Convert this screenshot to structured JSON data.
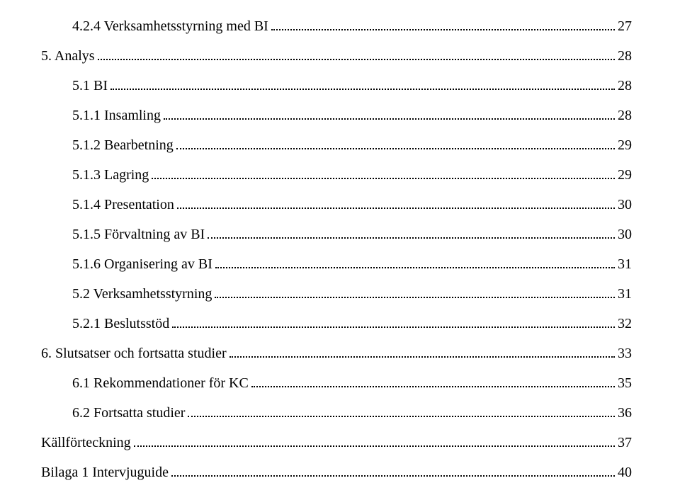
{
  "font_family": "Times New Roman",
  "text_color": "#000000",
  "background_color": "#ffffff",
  "fontsize": 20,
  "dot_leader_color": "#000000",
  "entries": [
    {
      "indent": 0,
      "label": "4.2.4 Verksamhetsstyrning med BI",
      "page": "27"
    },
    {
      "indent": 1,
      "label": "5. Analys",
      "page": "28"
    },
    {
      "indent": 2,
      "label": "5.1 BI",
      "page": "28"
    },
    {
      "indent": 0,
      "label": "5.1.1 Insamling",
      "page": "28"
    },
    {
      "indent": 0,
      "label": "5.1.2 Bearbetning",
      "page": "29"
    },
    {
      "indent": 0,
      "label": "5.1.3 Lagring",
      "page": "29"
    },
    {
      "indent": 0,
      "label": "5.1.4 Presentation",
      "page": "30"
    },
    {
      "indent": 0,
      "label": "5.1.5 Förvaltning av BI",
      "page": "30"
    },
    {
      "indent": 0,
      "label": "5.1.6 Organisering av BI",
      "page": "31"
    },
    {
      "indent": 2,
      "label": "5.2 Verksamhetsstyrning",
      "page": "31"
    },
    {
      "indent": 0,
      "label": "5.2.1 Beslutsstöd",
      "page": "32"
    },
    {
      "indent": 1,
      "label": "6. Slutsatser och fortsatta studier",
      "page": "33"
    },
    {
      "indent": 2,
      "label": "6.1 Rekommendationer för KC",
      "page": "35"
    },
    {
      "indent": 2,
      "label": "6.2 Fortsatta studier",
      "page": "36"
    },
    {
      "indent": 1,
      "label": "Källförteckning",
      "page": "37"
    },
    {
      "indent": 1,
      "label": "Bilaga 1 Intervjuguide",
      "page": "40"
    }
  ]
}
